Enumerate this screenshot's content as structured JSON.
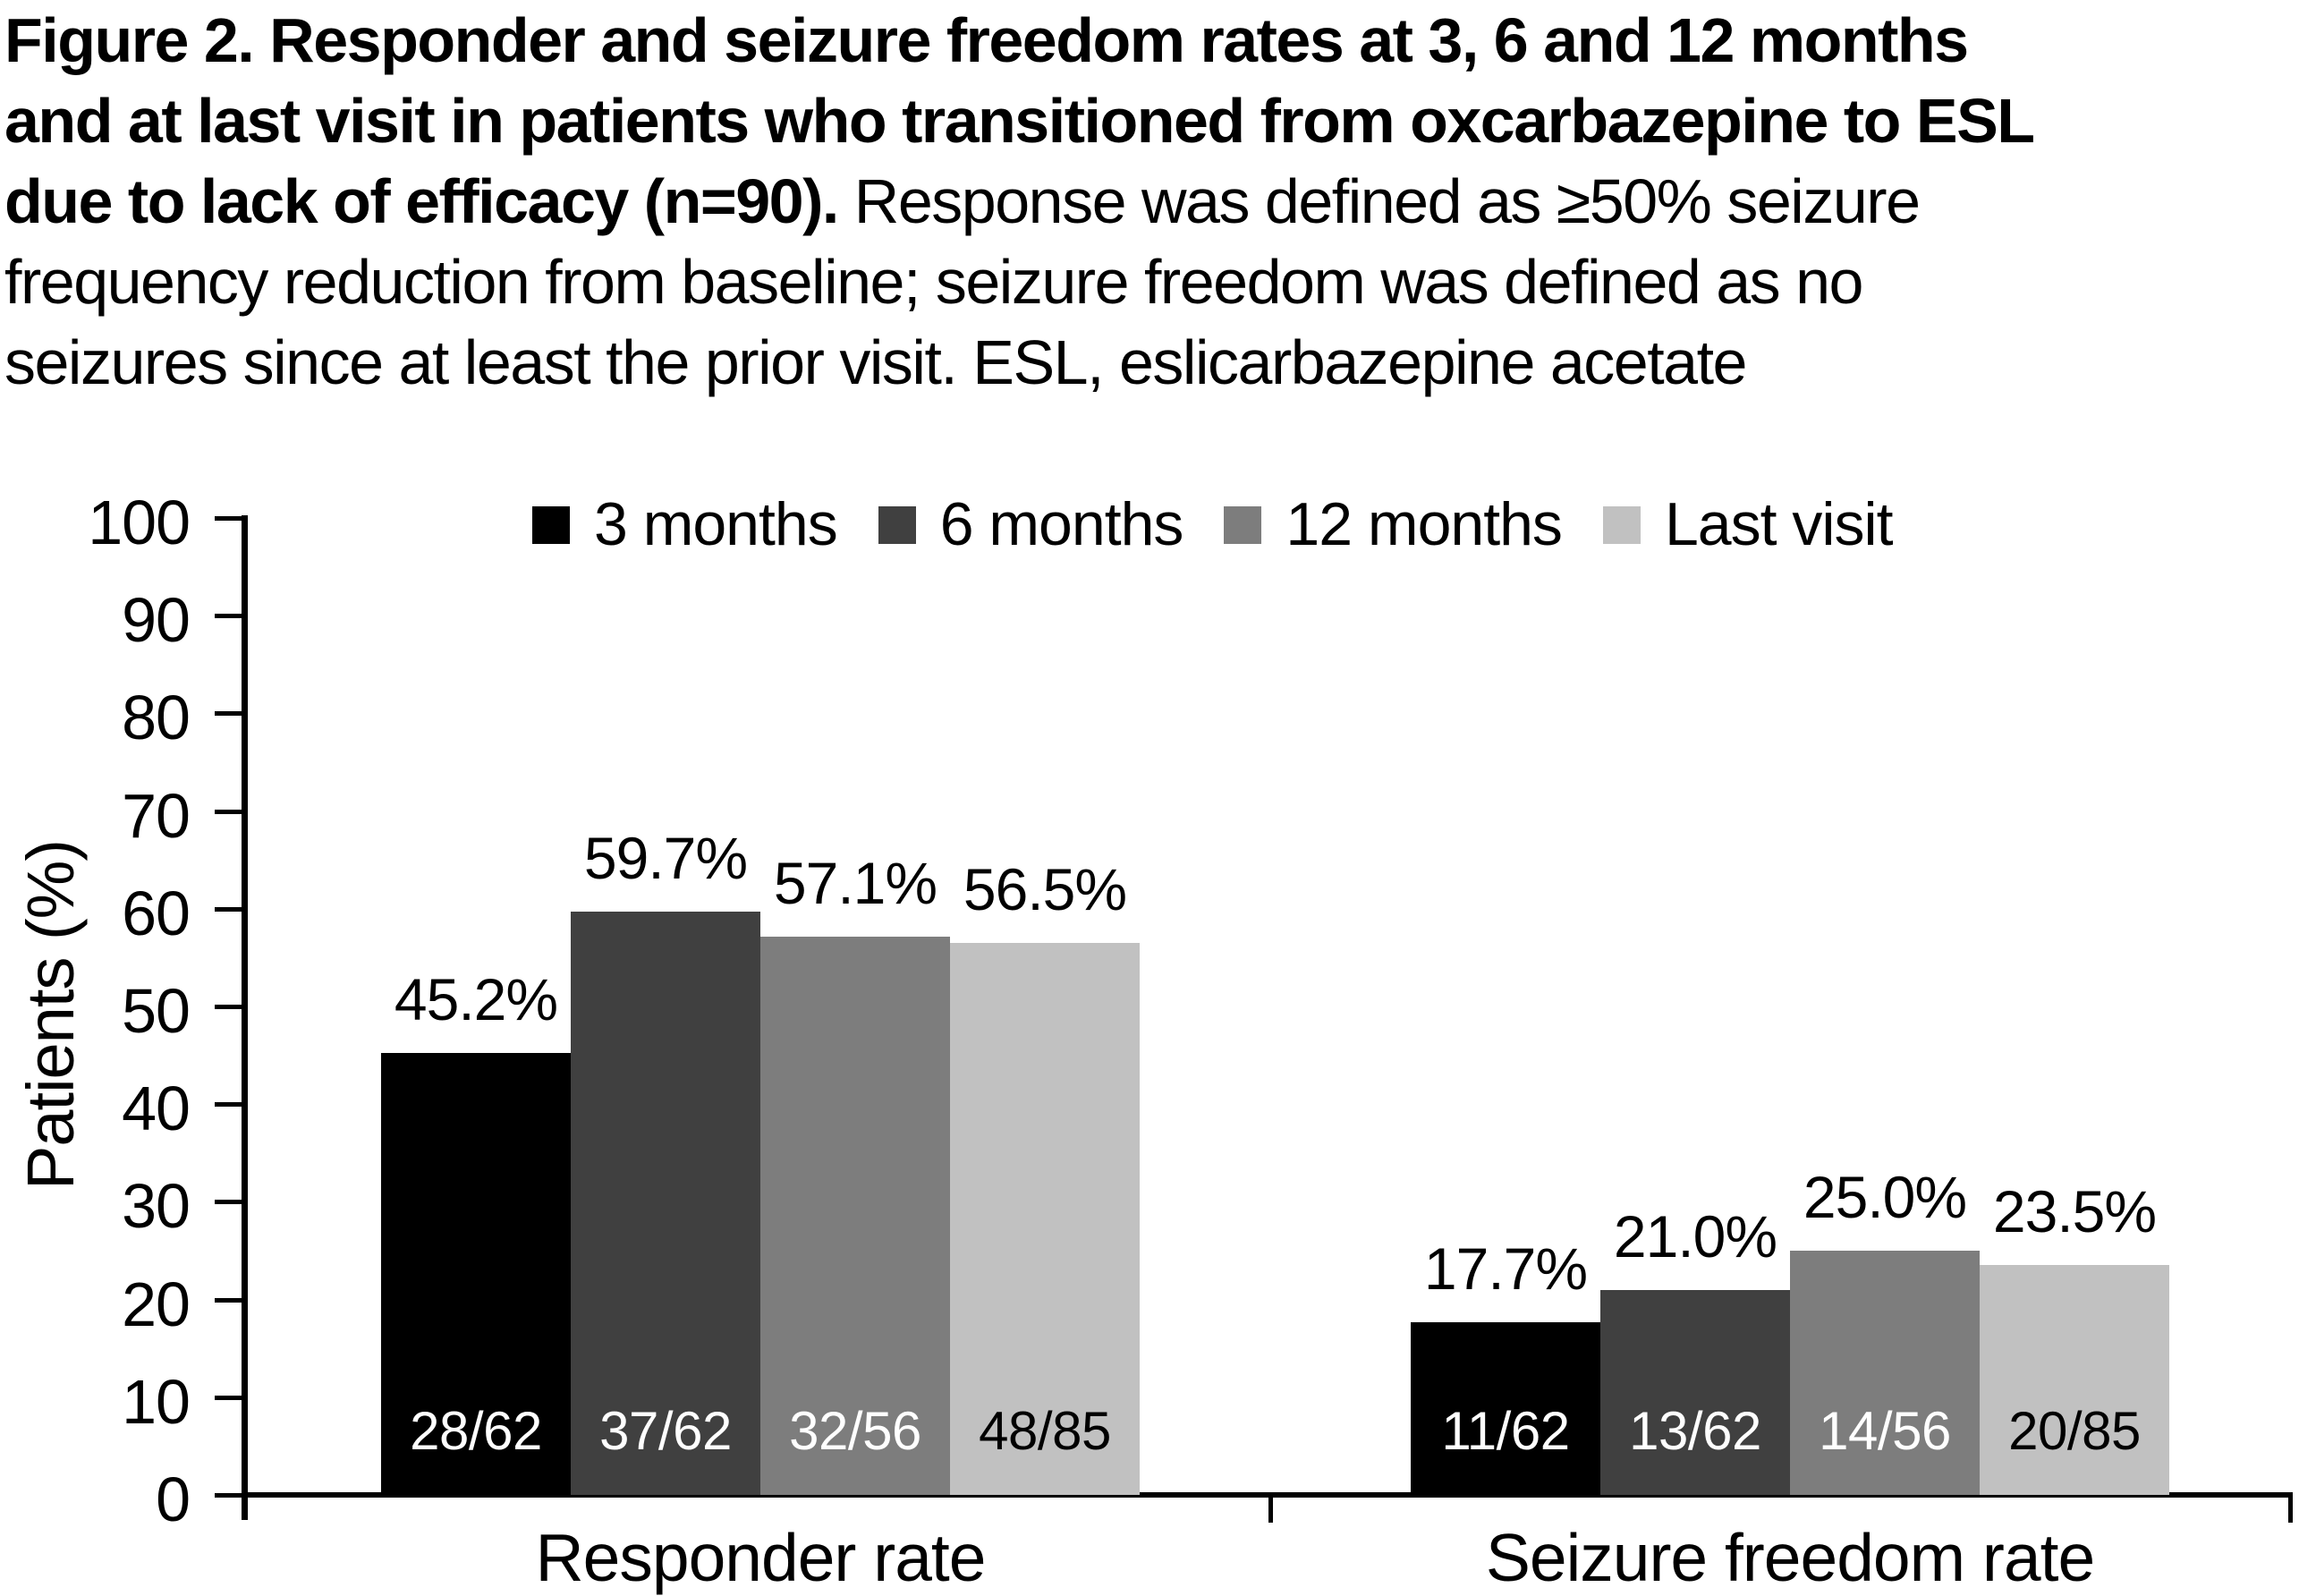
{
  "figure": {
    "caption_lines": [
      [
        {
          "bold": true,
          "text": "Figure 2. Responder and seizure freedom rates at 3, 6 and 12 months"
        }
      ],
      [
        {
          "bold": true,
          "text": "and at last visit in patients who transitioned from oxcarbazepine to ESL"
        }
      ],
      [
        {
          "bold": true,
          "text": "due to lack of efficacy (n=90)."
        },
        {
          "bold": false,
          "text": " Response was defined as ≥50% seizure"
        }
      ],
      [
        {
          "bold": false,
          "text": "frequency reduction from baseline; seizure freedom was defined as no"
        }
      ],
      [
        {
          "bold": false,
          "text": "seizures since at least the prior visit. ESL, eslicarbazepine acetate"
        }
      ]
    ]
  },
  "chart_data": {
    "type": "bar",
    "title": "",
    "xlabel": "",
    "ylabel": "Patients (%)",
    "ylim": [
      0,
      100
    ],
    "y_ticks": [
      0,
      10,
      20,
      30,
      40,
      50,
      60,
      70,
      80,
      90,
      100
    ],
    "grid": false,
    "legend_position": "top",
    "categories": [
      "Responder rate",
      "Seizure freedom rate"
    ],
    "series": [
      {
        "name": "3 months",
        "color": "#000000",
        "values": [
          45.2,
          17.7
        ],
        "value_labels": [
          "45.2%",
          "17.7%"
        ],
        "fractions": [
          "28/62",
          "11/62"
        ],
        "fraction_text_color": "#ffffff"
      },
      {
        "name": "6 months",
        "color": "#404040",
        "values": [
          59.7,
          21.0
        ],
        "value_labels": [
          "59.7%",
          "21.0%"
        ],
        "fractions": [
          "37/62",
          "13/62"
        ],
        "fraction_text_color": "#ffffff"
      },
      {
        "name": "12 months",
        "color": "#7d7d7d",
        "values": [
          57.1,
          25.0
        ],
        "value_labels": [
          "57.1%",
          "25.0%"
        ],
        "fractions": [
          "32/56",
          "14/56"
        ],
        "fraction_text_color": "#ffffff"
      },
      {
        "name": "Last visit",
        "color": "#c1c1c1",
        "values": [
          56.5,
          23.5
        ],
        "value_labels": [
          "56.5%",
          "23.5%"
        ],
        "fractions": [
          "48/85",
          "20/85"
        ],
        "fraction_text_color": "#000000"
      }
    ]
  }
}
